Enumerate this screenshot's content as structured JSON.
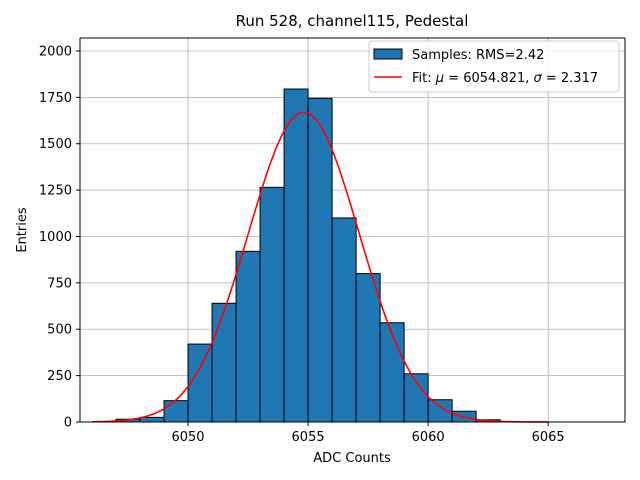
{
  "chart_data": {
    "type": "bar",
    "title": "Run 528, channel115, Pedestal",
    "xlabel": "ADC Counts",
    "ylabel": "Entries",
    "xlim": [
      6045.5,
      6068.2
    ],
    "ylim": [
      0,
      2070
    ],
    "grid": true,
    "legend_position": "top-right",
    "x_ticks": [
      6050,
      6055,
      6060,
      6065
    ],
    "x_tick_labels": [
      "6050",
      "6055",
      "6060",
      "6065"
    ],
    "y_ticks": [
      0,
      250,
      500,
      750,
      1000,
      1250,
      1500,
      1750,
      2000
    ],
    "y_tick_labels": [
      "0",
      "250",
      "500",
      "750",
      "1000",
      "1250",
      "1500",
      "1750",
      "2000"
    ],
    "histogram": {
      "name": "Samples: RMS=2.42",
      "color": "#1f77b4",
      "edge_color": "#000000",
      "bins": [
        {
          "x0": 6047,
          "x1": 6048,
          "count": 15
        },
        {
          "x0": 6048,
          "x1": 6049,
          "count": 25
        },
        {
          "x0": 6049,
          "x1": 6050,
          "count": 115
        },
        {
          "x0": 6050,
          "x1": 6051,
          "count": 420
        },
        {
          "x0": 6051,
          "x1": 6052,
          "count": 640
        },
        {
          "x0": 6052,
          "x1": 6053,
          "count": 920
        },
        {
          "x0": 6053,
          "x1": 6054,
          "count": 1265
        },
        {
          "x0": 6054,
          "x1": 6055,
          "count": 1795
        },
        {
          "x0": 6055,
          "x1": 6056,
          "count": 1745
        },
        {
          "x0": 6056,
          "x1": 6057,
          "count": 1100
        },
        {
          "x0": 6057,
          "x1": 6058,
          "count": 800
        },
        {
          "x0": 6058,
          "x1": 6059,
          "count": 535
        },
        {
          "x0": 6059,
          "x1": 6060,
          "count": 260
        },
        {
          "x0": 6060,
          "x1": 6061,
          "count": 120
        },
        {
          "x0": 6061,
          "x1": 6062,
          "count": 58
        },
        {
          "x0": 6062,
          "x1": 6063,
          "count": 12
        }
      ]
    },
    "fit": {
      "name": "Fit: μ = 6054.821, σ = 2.317",
      "color": "#ff0000",
      "mu": 6054.821,
      "sigma": 2.317,
      "amplitude": 1670,
      "x_range": [
        6046,
        6065
      ]
    },
    "legend": {
      "histogram_prefix": "Samples: RMS=2.42",
      "fit_prefix": "Fit: ",
      "mu_symbol": "μ",
      "mu_value": " = 6054.821, ",
      "sigma_symbol": "σ",
      "sigma_value": " = 2.317"
    }
  }
}
